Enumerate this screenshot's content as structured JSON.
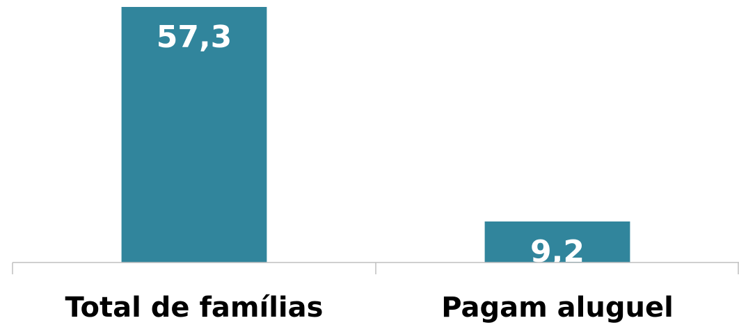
{
  "chart_data": {
    "type": "bar",
    "categories": [
      "Total de famílias",
      "Pagam aluguel"
    ],
    "values": [
      57.3,
      9.2
    ],
    "value_labels": [
      "57,3",
      "9,2"
    ],
    "color": "#31859c"
  }
}
